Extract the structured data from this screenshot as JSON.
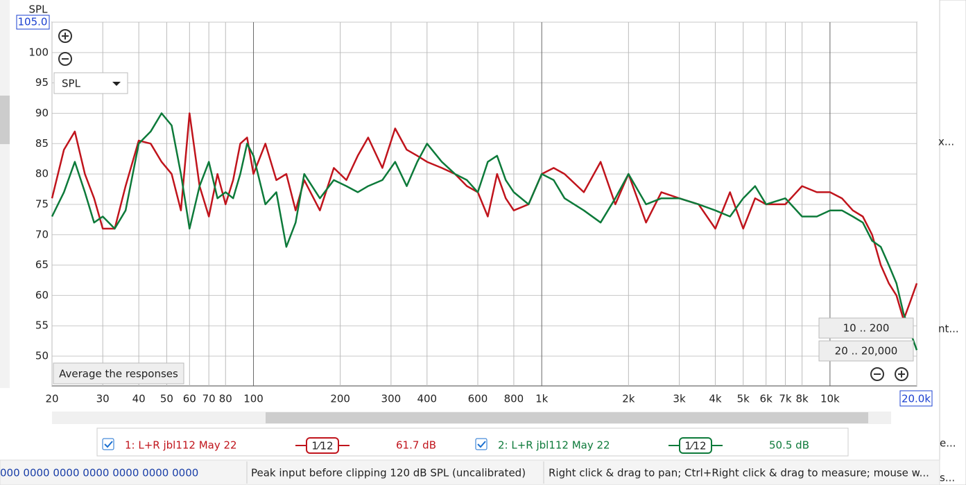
{
  "chart_data": {
    "type": "line",
    "y_label": "SPL",
    "x_log": true,
    "grid": true,
    "xlim": [
      20,
      20000
    ],
    "ylim": [
      45.1,
      105
    ],
    "xticks": [
      20,
      30,
      40,
      50,
      60,
      70,
      80,
      100,
      200,
      300,
      400,
      600,
      800,
      {
        "value": 1000,
        "label": "1k"
      },
      {
        "value": 2000,
        "label": "2k"
      },
      {
        "value": 3000,
        "label": "3k"
      },
      {
        "value": 4000,
        "label": "4k"
      },
      {
        "value": 5000,
        "label": "5k"
      },
      {
        "value": 6000,
        "label": "6k"
      },
      {
        "value": 7000,
        "label": "7k"
      },
      {
        "value": 8000,
        "label": "8k"
      },
      {
        "value": 10000,
        "label": "10k"
      },
      {
        "value": 20000,
        "label": "20.0k"
      }
    ],
    "yticks": [
      50,
      55,
      60,
      65,
      70,
      75,
      80,
      85,
      90,
      95,
      100,
      {
        "value": 105,
        "label": "105.0"
      }
    ],
    "x": [
      20,
      22,
      24,
      26,
      28,
      30,
      33,
      36,
      40,
      44,
      48,
      52,
      56,
      60,
      65,
      70,
      75,
      80,
      85,
      90,
      95,
      100,
      110,
      120,
      130,
      140,
      150,
      170,
      190,
      210,
      230,
      250,
      280,
      310,
      340,
      370,
      400,
      450,
      500,
      550,
      600,
      650,
      700,
      750,
      800,
      900,
      1000,
      1100,
      1200,
      1400,
      1600,
      1800,
      2000,
      2300,
      2600,
      3000,
      3500,
      4000,
      4500,
      5000,
      5500,
      6000,
      7000,
      8000,
      9000,
      10000,
      11000,
      12000,
      13000,
      14000,
      15000,
      16000,
      17000,
      18000,
      19000,
      20000
    ],
    "series": [
      {
        "name": "1: L+R jbl112 May 22",
        "color": "#c0141c",
        "smoothing": "1⁄12",
        "level": "61.7 dB",
        "values": [
          76,
          84,
          87,
          80,
          76,
          71,
          71,
          78,
          85.5,
          85,
          82,
          80,
          74,
          90,
          78,
          73,
          80,
          75,
          79,
          85,
          86,
          80,
          85,
          79,
          80,
          74,
          79,
          74,
          81,
          79,
          83,
          86,
          81,
          87.5,
          84,
          83,
          82,
          81,
          80,
          78,
          77,
          73,
          80,
          76,
          74,
          75,
          80,
          81,
          80,
          77,
          82,
          75,
          80,
          72,
          77,
          76,
          75,
          71,
          77,
          71,
          76,
          75,
          75,
          78,
          77,
          77,
          76,
          74,
          73,
          70,
          65,
          62,
          60,
          56,
          59,
          62
        ]
      },
      {
        "name": "2: L+R jbl112 May 22",
        "color": "#0d7a3a",
        "smoothing": "1⁄12",
        "level": "50.5 dB",
        "values": [
          73,
          77,
          82,
          77,
          72,
          73,
          71,
          74,
          85,
          87,
          90,
          88,
          80,
          71,
          78,
          82,
          76,
          77,
          76,
          80,
          85,
          83,
          75,
          77,
          68,
          72,
          80,
          76,
          79,
          78,
          77,
          78,
          79,
          82,
          78,
          82,
          85,
          82,
          80,
          79,
          77,
          82,
          83,
          79,
          77,
          75,
          80,
          79,
          76,
          74,
          72,
          76,
          80,
          75,
          76,
          76,
          75,
          74,
          73,
          76,
          78,
          75,
          76,
          73,
          73,
          74,
          74,
          73,
          72,
          69,
          68,
          65,
          62,
          57,
          54,
          51
        ]
      }
    ]
  },
  "ui": {
    "dropdown": "SPL",
    "average_button": "Average the responses",
    "range_buttons": [
      "10 .. 200",
      "20 .. 20,000"
    ],
    "status": [
      "000  0000 0000  0000 0000  0000 0000",
      "Peak input before clipping 120 dB SPL (uncalibrated)",
      "Right click & drag to pan; Ctrl+Right click & drag to measure; mouse w..."
    ],
    "side": [
      "x...",
      "nt...",
      "e...",
      "s..."
    ]
  }
}
